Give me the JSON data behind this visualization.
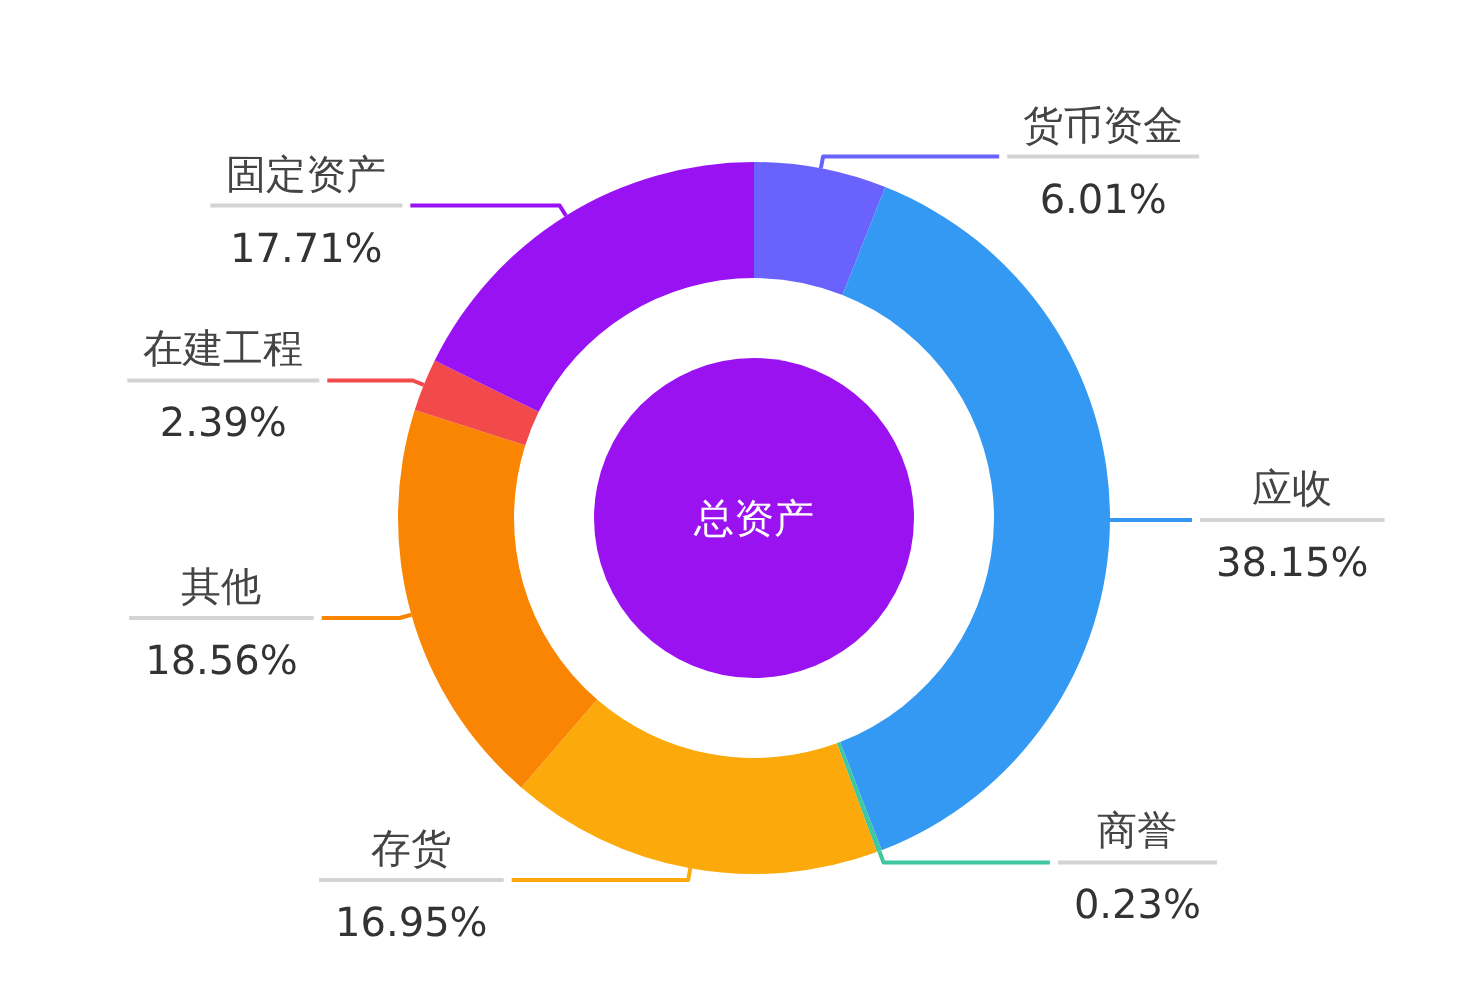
{
  "chart_data": {
    "type": "donut",
    "title": "总资产",
    "categories": [
      "货币资金",
      "应收",
      "商誉",
      "存货",
      "其他",
      "在建工程",
      "固定资产"
    ],
    "values": [
      6.01,
      38.15,
      0.23,
      16.95,
      18.56,
      2.39,
      17.71
    ],
    "colors": [
      "#6a62fd",
      "#3399f3",
      "#3fc7a0",
      "#fba90b",
      "#fa8502",
      "#f24a4a",
      "#9812f3"
    ],
    "value_labels": [
      "6.01%",
      "38.15%",
      "0.23%",
      "16.95%",
      "18.56%",
      "2.39%",
      "17.71%"
    ]
  }
}
